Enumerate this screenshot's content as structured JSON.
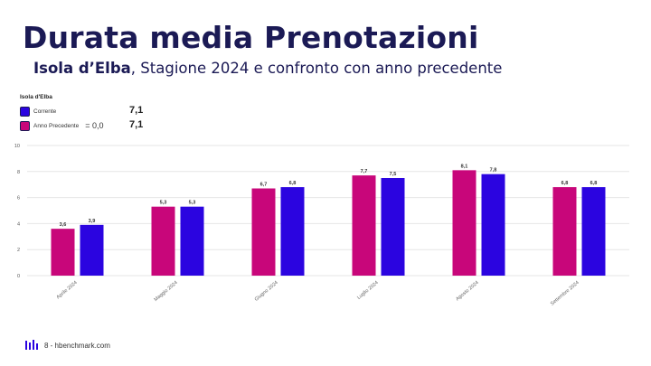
{
  "slide": {
    "title": "Durata media Prenotazioni",
    "subtitle_bold": "Isola d’Elba",
    "subtitle_rest": ", Stagione 2024 e confronto con anno precedente"
  },
  "legend": {
    "title": "Isola d'Elba",
    "current_label": "Corrente",
    "current_value": "7,1",
    "previous_label": "Anno Precedente",
    "previous_diff": "= 0,0",
    "previous_value": "7,1"
  },
  "footer": {
    "text": "8 - hbenchmark.com",
    "logo_icon": "hbenchmark-logo-icon"
  },
  "colors": {
    "previous": "#c8067a",
    "current": "#2b04e0",
    "text_dark": "#1b1a55"
  },
  "chart_data": {
    "type": "bar",
    "categories": [
      "Aprile 2024",
      "Maggio 2024",
      "Giugno 2024",
      "Luglio 2024",
      "Agosto 2024",
      "Settembre 2024"
    ],
    "series": [
      {
        "name": "Anno Precedente",
        "values": [
          3.6,
          5.3,
          6.7,
          7.7,
          8.1,
          6.8
        ],
        "labels": [
          "3,6",
          "5,3",
          "6,7",
          "7,7",
          "8,1",
          "6,8"
        ],
        "color": "#c8067a"
      },
      {
        "name": "Corrente",
        "values": [
          3.9,
          5.3,
          6.8,
          7.5,
          7.8,
          6.8
        ],
        "labels": [
          "3,9",
          "5,3",
          "6,8",
          "7,5",
          "7,8",
          "6,8"
        ],
        "color": "#2b04e0"
      }
    ],
    "yticks": [
      0,
      2,
      4,
      6,
      8,
      10
    ],
    "ylim": [
      0,
      10
    ],
    "grid": true,
    "legend": "top-left"
  }
}
